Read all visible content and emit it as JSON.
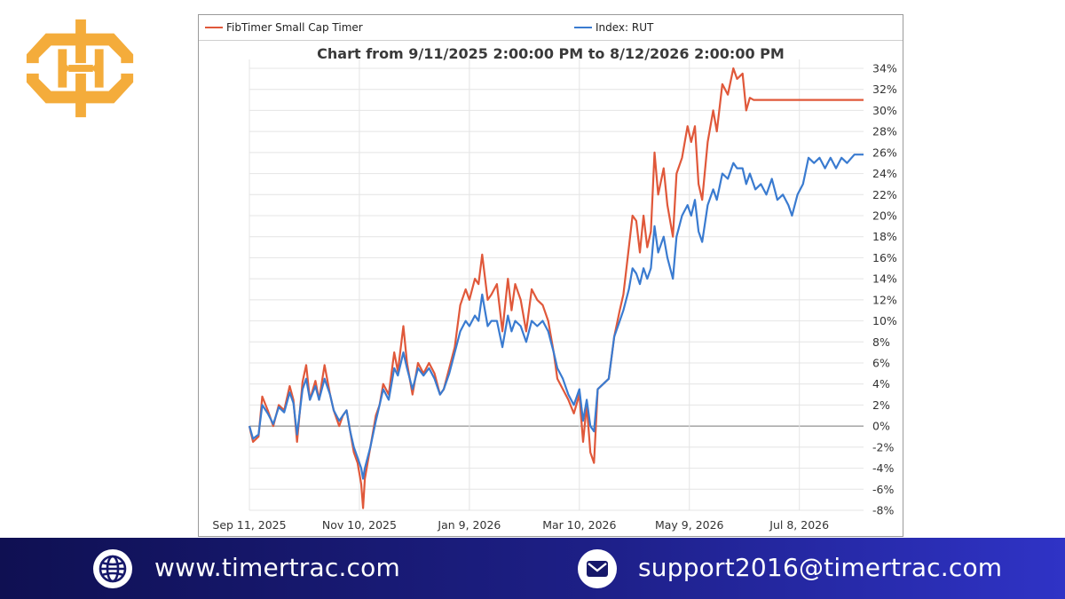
{
  "brand": {
    "logo_icon": "timertrac-logo-icon",
    "logo_color": "#f4ac3b"
  },
  "chart_data": {
    "type": "line",
    "title": "Chart from 9/11/2025 2:00:00 PM to 8/12/2026 2:00:00 PM",
    "xlabel": "",
    "ylabel": "",
    "x_range": [
      "2025-09-11",
      "2026-08-12"
    ],
    "ylim": [
      -8,
      34
    ],
    "y_ticks": [
      -8,
      -6,
      -4,
      -2,
      0,
      2,
      4,
      6,
      8,
      10,
      12,
      14,
      16,
      18,
      20,
      22,
      24,
      26,
      28,
      30,
      32,
      34
    ],
    "y_tick_labels": [
      "-8%",
      "-6%",
      "-4%",
      "-2%",
      "0%",
      "2%",
      "4%",
      "6%",
      "8%",
      "10%",
      "12%",
      "14%",
      "16%",
      "18%",
      "20%",
      "22%",
      "24%",
      "26%",
      "28%",
      "30%",
      "32%",
      "34%"
    ],
    "x_ticks": [
      {
        "date": "2025-09-11",
        "label": "Sep 11, 2025"
      },
      {
        "date": "2025-11-10",
        "label": "Nov 10, 2025"
      },
      {
        "date": "2026-01-09",
        "label": "Jan 9, 2026"
      },
      {
        "date": "2026-03-10",
        "label": "Mar 10, 2026"
      },
      {
        "date": "2026-05-09",
        "label": "May 9, 2026"
      },
      {
        "date": "2026-07-08",
        "label": "Jul 8, 2026"
      }
    ],
    "grid": true,
    "legend_position": "top",
    "series": [
      {
        "name": "FibTimer Small Cap Timer",
        "color": "#e0583a",
        "points": [
          [
            "2025-09-11",
            0
          ],
          [
            "2025-09-13",
            -1.5
          ],
          [
            "2025-09-16",
            -1
          ],
          [
            "2025-09-18",
            2.8
          ],
          [
            "2025-09-21",
            1.5
          ],
          [
            "2025-09-24",
            0
          ],
          [
            "2025-09-27",
            2
          ],
          [
            "2025-09-30",
            1.5
          ],
          [
            "2025-10-03",
            3.8
          ],
          [
            "2025-10-05",
            2.5
          ],
          [
            "2025-10-07",
            -1.5
          ],
          [
            "2025-10-10",
            4.2
          ],
          [
            "2025-10-12",
            5.8
          ],
          [
            "2025-10-14",
            2.5
          ],
          [
            "2025-10-17",
            4.3
          ],
          [
            "2025-10-19",
            2.5
          ],
          [
            "2025-10-22",
            5.8
          ],
          [
            "2025-10-25",
            3
          ],
          [
            "2025-10-27",
            1.5
          ],
          [
            "2025-10-30",
            0
          ],
          [
            "2025-11-01",
            1
          ],
          [
            "2025-11-03",
            1.5
          ],
          [
            "2025-11-05",
            -0.5
          ],
          [
            "2025-11-07",
            -2.5
          ],
          [
            "2025-11-09",
            -3.5
          ],
          [
            "2025-11-11",
            -5.5
          ],
          [
            "2025-11-12",
            -7.8
          ],
          [
            "2025-11-13",
            -5
          ],
          [
            "2025-11-16",
            -2
          ],
          [
            "2025-11-19",
            1
          ],
          [
            "2025-11-21",
            2
          ],
          [
            "2025-11-23",
            4
          ],
          [
            "2025-11-26",
            3
          ],
          [
            "2025-11-29",
            7
          ],
          [
            "2025-12-01",
            5.2
          ],
          [
            "2025-12-04",
            9.5
          ],
          [
            "2025-12-06",
            6
          ],
          [
            "2025-12-09",
            3
          ],
          [
            "2025-12-12",
            6
          ],
          [
            "2025-12-15",
            5
          ],
          [
            "2025-12-18",
            6
          ],
          [
            "2025-12-21",
            5
          ],
          [
            "2025-12-24",
            3
          ],
          [
            "2025-12-26",
            3.5
          ],
          [
            "2025-12-29",
            5.5
          ],
          [
            "2026-01-01",
            7.5
          ],
          [
            "2026-01-04",
            11.5
          ],
          [
            "2026-01-07",
            13
          ],
          [
            "2026-01-09",
            12
          ],
          [
            "2026-01-12",
            14
          ],
          [
            "2026-01-14",
            13.5
          ],
          [
            "2026-01-16",
            16.3
          ],
          [
            "2026-01-19",
            12
          ],
          [
            "2026-01-21",
            12.5
          ],
          [
            "2026-01-24",
            13.5
          ],
          [
            "2026-01-27",
            9
          ],
          [
            "2026-01-30",
            14
          ],
          [
            "2026-02-01",
            11
          ],
          [
            "2026-02-03",
            13.5
          ],
          [
            "2026-02-06",
            12
          ],
          [
            "2026-02-09",
            9
          ],
          [
            "2026-02-12",
            13
          ],
          [
            "2026-02-15",
            12
          ],
          [
            "2026-02-18",
            11.5
          ],
          [
            "2026-02-21",
            10
          ],
          [
            "2026-02-24",
            7
          ],
          [
            "2026-02-26",
            4.5
          ],
          [
            "2026-03-01",
            3.5
          ],
          [
            "2026-03-04",
            2.5
          ],
          [
            "2026-03-07",
            1.2
          ],
          [
            "2026-03-10",
            3
          ],
          [
            "2026-03-12",
            -1.5
          ],
          [
            "2026-03-14",
            2
          ],
          [
            "2026-03-16",
            -2.5
          ],
          [
            "2026-03-18",
            -3.5
          ],
          [
            "2026-03-20",
            3.5
          ],
          [
            "2026-03-23",
            4
          ],
          [
            "2026-03-26",
            4.5
          ],
          [
            "2026-03-29",
            8.5
          ],
          [
            "2026-04-01",
            11
          ],
          [
            "2026-04-03",
            12.5
          ],
          [
            "2026-04-06",
            17
          ],
          [
            "2026-04-08",
            20
          ],
          [
            "2026-04-10",
            19.5
          ],
          [
            "2026-04-12",
            16.5
          ],
          [
            "2026-04-14",
            20
          ],
          [
            "2026-04-16",
            17
          ],
          [
            "2026-04-18",
            18.5
          ],
          [
            "2026-04-20",
            26
          ],
          [
            "2026-04-22",
            22
          ],
          [
            "2026-04-25",
            24.5
          ],
          [
            "2026-04-27",
            21
          ],
          [
            "2026-04-30",
            18
          ],
          [
            "2026-05-02",
            24
          ],
          [
            "2026-05-05",
            25.5
          ],
          [
            "2026-05-08",
            28.5
          ],
          [
            "2026-05-10",
            27
          ],
          [
            "2026-05-12",
            28.5
          ],
          [
            "2026-05-14",
            23
          ],
          [
            "2026-05-16",
            21.5
          ],
          [
            "2026-05-19",
            27
          ],
          [
            "2026-05-22",
            30
          ],
          [
            "2026-05-24",
            28
          ],
          [
            "2026-05-27",
            32.5
          ],
          [
            "2026-05-30",
            31.5
          ],
          [
            "2026-06-02",
            34
          ],
          [
            "2026-06-04",
            33
          ],
          [
            "2026-06-07",
            33.5
          ],
          [
            "2026-06-09",
            30
          ],
          [
            "2026-06-11",
            31.2
          ],
          [
            "2026-06-13",
            31
          ],
          [
            "2026-08-12",
            31
          ]
        ]
      },
      {
        "name": "Index: RUT",
        "color": "#3a7bd0",
        "points": [
          [
            "2025-09-11",
            0
          ],
          [
            "2025-09-13",
            -1.2
          ],
          [
            "2025-09-16",
            -0.8
          ],
          [
            "2025-09-18",
            2
          ],
          [
            "2025-09-21",
            1.2
          ],
          [
            "2025-09-24",
            0.2
          ],
          [
            "2025-09-27",
            1.8
          ],
          [
            "2025-09-30",
            1.3
          ],
          [
            "2025-10-03",
            3.2
          ],
          [
            "2025-10-05",
            2.2
          ],
          [
            "2025-10-07",
            -0.8
          ],
          [
            "2025-10-10",
            3.5
          ],
          [
            "2025-10-12",
            4.5
          ],
          [
            "2025-10-14",
            2.5
          ],
          [
            "2025-10-17",
            3.8
          ],
          [
            "2025-10-19",
            2.5
          ],
          [
            "2025-10-22",
            4.5
          ],
          [
            "2025-10-25",
            3
          ],
          [
            "2025-10-27",
            1.5
          ],
          [
            "2025-10-30",
            0.5
          ],
          [
            "2025-11-01",
            1
          ],
          [
            "2025-11-03",
            1.5
          ],
          [
            "2025-11-05",
            -0.5
          ],
          [
            "2025-11-07",
            -2
          ],
          [
            "2025-11-09",
            -3
          ],
          [
            "2025-11-11",
            -4
          ],
          [
            "2025-11-12",
            -5
          ],
          [
            "2025-11-13",
            -4
          ],
          [
            "2025-11-16",
            -2
          ],
          [
            "2025-11-19",
            0.5
          ],
          [
            "2025-11-21",
            2
          ],
          [
            "2025-11-23",
            3.5
          ],
          [
            "2025-11-26",
            2.5
          ],
          [
            "2025-11-29",
            5.5
          ],
          [
            "2025-12-01",
            4.8
          ],
          [
            "2025-12-04",
            7
          ],
          [
            "2025-12-06",
            5.5
          ],
          [
            "2025-12-09",
            3.5
          ],
          [
            "2025-12-12",
            5.5
          ],
          [
            "2025-12-15",
            4.8
          ],
          [
            "2025-12-18",
            5.5
          ],
          [
            "2025-12-21",
            4.5
          ],
          [
            "2025-12-24",
            3
          ],
          [
            "2025-12-26",
            3.5
          ],
          [
            "2025-12-29",
            5
          ],
          [
            "2026-01-01",
            7
          ],
          [
            "2026-01-04",
            9
          ],
          [
            "2026-01-07",
            10
          ],
          [
            "2026-01-09",
            9.5
          ],
          [
            "2026-01-12",
            10.5
          ],
          [
            "2026-01-14",
            10
          ],
          [
            "2026-01-16",
            12.5
          ],
          [
            "2026-01-19",
            9.5
          ],
          [
            "2026-01-21",
            10
          ],
          [
            "2026-01-24",
            10
          ],
          [
            "2026-01-27",
            7.5
          ],
          [
            "2026-01-30",
            10.5
          ],
          [
            "2026-02-01",
            9
          ],
          [
            "2026-02-03",
            10
          ],
          [
            "2026-02-06",
            9.5
          ],
          [
            "2026-02-09",
            8
          ],
          [
            "2026-02-12",
            10
          ],
          [
            "2026-02-15",
            9.5
          ],
          [
            "2026-02-18",
            10
          ],
          [
            "2026-02-21",
            9
          ],
          [
            "2026-02-24",
            7
          ],
          [
            "2026-02-26",
            5.5
          ],
          [
            "2026-03-01",
            4.5
          ],
          [
            "2026-03-04",
            3
          ],
          [
            "2026-03-07",
            2
          ],
          [
            "2026-03-10",
            3.5
          ],
          [
            "2026-03-12",
            0.5
          ],
          [
            "2026-03-14",
            2.5
          ],
          [
            "2026-03-16",
            0
          ],
          [
            "2026-03-18",
            -0.5
          ],
          [
            "2026-03-20",
            3.5
          ],
          [
            "2026-03-23",
            4
          ],
          [
            "2026-03-26",
            4.5
          ],
          [
            "2026-03-29",
            8.5
          ],
          [
            "2026-04-01",
            10
          ],
          [
            "2026-04-03",
            11
          ],
          [
            "2026-04-06",
            13
          ],
          [
            "2026-04-08",
            15
          ],
          [
            "2026-04-10",
            14.5
          ],
          [
            "2026-04-12",
            13.5
          ],
          [
            "2026-04-14",
            15
          ],
          [
            "2026-04-16",
            14
          ],
          [
            "2026-04-18",
            15
          ],
          [
            "2026-04-20",
            19
          ],
          [
            "2026-04-22",
            16.5
          ],
          [
            "2026-04-25",
            18
          ],
          [
            "2026-04-27",
            16
          ],
          [
            "2026-04-30",
            14
          ],
          [
            "2026-05-02",
            18
          ],
          [
            "2026-05-05",
            20
          ],
          [
            "2026-05-08",
            21
          ],
          [
            "2026-05-10",
            20
          ],
          [
            "2026-05-12",
            21.5
          ],
          [
            "2026-05-14",
            18.5
          ],
          [
            "2026-05-16",
            17.5
          ],
          [
            "2026-05-19",
            21
          ],
          [
            "2026-05-22",
            22.5
          ],
          [
            "2026-05-24",
            21.5
          ],
          [
            "2026-05-27",
            24
          ],
          [
            "2026-05-30",
            23.5
          ],
          [
            "2026-06-02",
            25
          ],
          [
            "2026-06-04",
            24.5
          ],
          [
            "2026-06-07",
            24.5
          ],
          [
            "2026-06-09",
            23
          ],
          [
            "2026-06-11",
            24
          ],
          [
            "2026-06-14",
            22.5
          ],
          [
            "2026-06-17",
            23
          ],
          [
            "2026-06-20",
            22
          ],
          [
            "2026-06-23",
            23.5
          ],
          [
            "2026-06-26",
            21.5
          ],
          [
            "2026-06-29",
            22
          ],
          [
            "2026-07-02",
            21
          ],
          [
            "2026-07-04",
            20
          ],
          [
            "2026-07-07",
            22
          ],
          [
            "2026-07-10",
            23
          ],
          [
            "2026-07-13",
            25.5
          ],
          [
            "2026-07-16",
            25
          ],
          [
            "2026-07-19",
            25.5
          ],
          [
            "2026-07-22",
            24.5
          ],
          [
            "2026-07-25",
            25.5
          ],
          [
            "2026-07-28",
            24.5
          ],
          [
            "2026-07-31",
            25.5
          ],
          [
            "2026-08-03",
            25
          ],
          [
            "2026-08-07",
            25.8
          ],
          [
            "2026-08-12",
            25.8
          ]
        ]
      }
    ]
  },
  "footer": {
    "website": "www.timertrac.com",
    "email": "support2016@timertrac.com",
    "globe_icon": "globe-icon",
    "mail_icon": "mail-icon"
  }
}
